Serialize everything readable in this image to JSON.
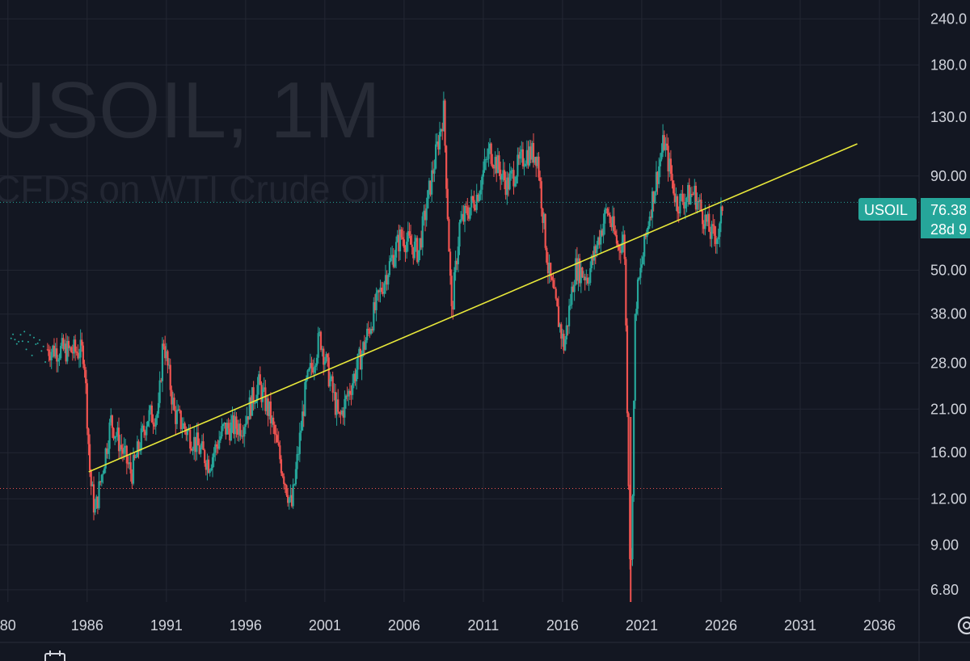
{
  "colors": {
    "background": "#131722",
    "grid": "#232733",
    "up": "#26a69a",
    "down": "#ef5350",
    "trendline": "#e8e83a",
    "price_line": "#26a69a",
    "badge": "#26a69a",
    "axis_text": "#d1d4dc"
  },
  "watermark": {
    "symbol": "USOIL, 1M",
    "description": "CFDs on WTI Crude Oil"
  },
  "price_badge": {
    "symbol": "USOIL",
    "price": "76.38",
    "countdown": "28d 9"
  },
  "icons": {
    "settings": "settings-gear-icon",
    "calendar": "calendar-icon"
  },
  "chart_data": {
    "type": "candlestick",
    "title": "",
    "xlabel": "",
    "ylabel": "",
    "scale": "log",
    "x_ticks": [
      "80",
      "1986",
      "1991",
      "1996",
      "2001",
      "2006",
      "2011",
      "2016",
      "2021",
      "2026",
      "2031",
      "2036"
    ],
    "x_tick_years": [
      1981,
      1986,
      1991,
      1996,
      2001,
      2006,
      2011,
      2016,
      2021,
      2026,
      2031,
      2036
    ],
    "y_ticks": [
      "240.0",
      "180.0",
      "130.0",
      "90.00",
      "50.00",
      "38.00",
      "28.00",
      "21.00",
      "16.00",
      "12.00",
      "9.00",
      "6.80"
    ],
    "y_tick_values": [
      240,
      180,
      130,
      90,
      50,
      38,
      28,
      21,
      16,
      12,
      9,
      6.8
    ],
    "xlim": [
      1980.5,
      2038.5
    ],
    "ylim": [
      6.3,
      270
    ],
    "last_price": 76.38,
    "lowest_marker_price": 12.8,
    "trendline": {
      "start": [
        1986.1,
        14.2
      ],
      "end": [
        2034.6,
        110
      ]
    },
    "series": [
      {
        "name": "USOIL",
        "anchors": [
          [
            1983.5,
            30.5
          ],
          [
            1985.8,
            30.0
          ],
          [
            1986.2,
            13.5
          ],
          [
            1986.5,
            11.0
          ],
          [
            1987.5,
            19.5
          ],
          [
            1988.8,
            14.0
          ],
          [
            1989.8,
            20.0
          ],
          [
            1990.5,
            20.5
          ],
          [
            1990.8,
            33.0
          ],
          [
            1991.5,
            20.5
          ],
          [
            1993.7,
            15.0
          ],
          [
            1994.6,
            18.5
          ],
          [
            1995.8,
            19.0
          ],
          [
            1996.8,
            24.5
          ],
          [
            1997.5,
            20.5
          ],
          [
            1998.9,
            11.3
          ],
          [
            1999.8,
            24.0
          ],
          [
            2000.7,
            33.0
          ],
          [
            2001.9,
            19.5
          ],
          [
            2003.3,
            29.5
          ],
          [
            2004.8,
            48.0
          ],
          [
            2005.8,
            62.0
          ],
          [
            2006.9,
            56.0
          ],
          [
            2008.5,
            135.0
          ],
          [
            2009.0,
            38.0
          ],
          [
            2009.5,
            66.0
          ],
          [
            2010.6,
            80.0
          ],
          [
            2011.4,
            106.0
          ],
          [
            2012.5,
            85.0
          ],
          [
            2013.7,
            104.0
          ],
          [
            2014.4,
            103.0
          ],
          [
            2015.1,
            50.0
          ],
          [
            2016.1,
            31.0
          ],
          [
            2016.8,
            51.0
          ],
          [
            2017.6,
            48.0
          ],
          [
            2018.8,
            73.0
          ],
          [
            2019.5,
            58.0
          ],
          [
            2019.9,
            61.0
          ],
          [
            2020.3,
            6.5
          ],
          [
            2020.6,
            40.0
          ],
          [
            2021.5,
            72.0
          ],
          [
            2022.4,
            112.0
          ],
          [
            2023.2,
            76.0
          ],
          [
            2024.3,
            81.0
          ],
          [
            2025.4,
            62.0
          ],
          [
            2025.9,
            63.0
          ],
          [
            2026.1,
            76.38
          ]
        ]
      }
    ]
  }
}
